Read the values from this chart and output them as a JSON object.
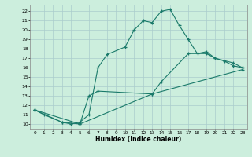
{
  "xlabel": "Humidex (Indice chaleur)",
  "bg_color": "#cceedd",
  "grid_color": "#aacccc",
  "line_color": "#1a7a6a",
  "xlim": [
    -0.5,
    23.5
  ],
  "ylim": [
    9.5,
    22.7
  ],
  "xticks": [
    0,
    1,
    2,
    3,
    4,
    5,
    6,
    7,
    8,
    9,
    10,
    11,
    12,
    13,
    14,
    15,
    16,
    17,
    18,
    19,
    20,
    21,
    22,
    23
  ],
  "yticks": [
    10,
    11,
    12,
    13,
    14,
    15,
    16,
    17,
    18,
    19,
    20,
    21,
    22
  ],
  "line1_x": [
    0,
    1,
    3,
    4,
    5,
    6,
    7,
    8,
    10,
    11,
    12,
    13,
    14,
    15,
    16,
    17,
    18,
    19,
    20,
    21,
    22,
    23
  ],
  "line1_y": [
    11.5,
    11.0,
    10.2,
    10.0,
    10.2,
    11.0,
    16.0,
    17.4,
    18.2,
    20.0,
    21.0,
    20.8,
    22.0,
    22.2,
    20.5,
    19.0,
    17.5,
    17.7,
    17.0,
    16.7,
    16.2,
    16.0
  ],
  "line2_x": [
    0,
    3,
    5,
    6,
    7,
    13,
    14,
    17,
    19,
    20,
    22,
    23
  ],
  "line2_y": [
    11.5,
    10.2,
    10.0,
    13.0,
    13.5,
    13.2,
    14.5,
    17.5,
    17.5,
    17.0,
    16.5,
    16.0
  ],
  "line3_x": [
    0,
    5,
    13,
    23
  ],
  "line3_y": [
    11.5,
    10.0,
    13.2,
    15.8
  ]
}
